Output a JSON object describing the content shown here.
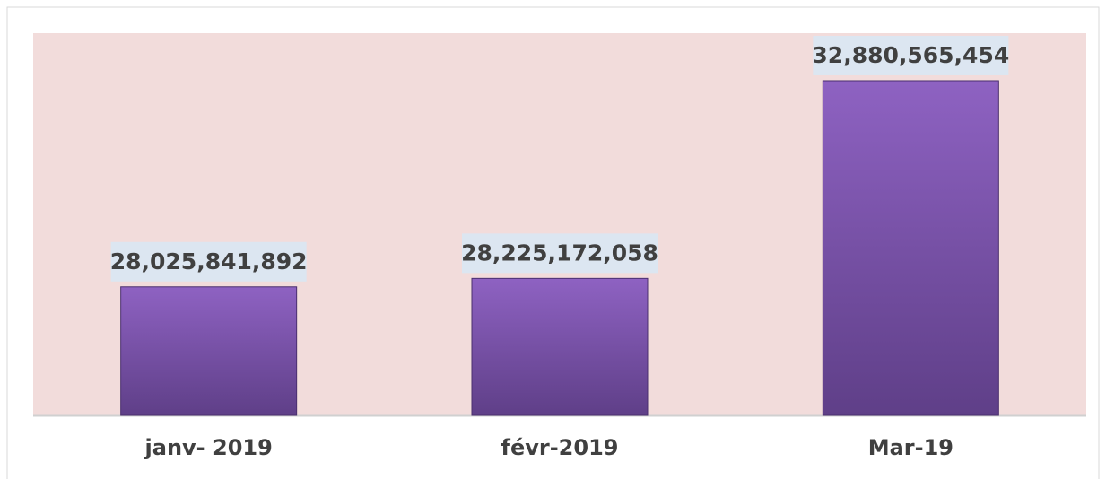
{
  "chart_data": {
    "type": "bar",
    "categories": [
      "janv- 2019",
      "févr-2019",
      "Mar-19"
    ],
    "values": [
      28025841892,
      28225172058,
      32880565454
    ],
    "value_labels": [
      "28,025,841,892",
      "28,225,172,058",
      "32,880,565,454"
    ],
    "color": "#7b52b0",
    "ylim": [
      25000000000,
      34000000000
    ]
  }
}
